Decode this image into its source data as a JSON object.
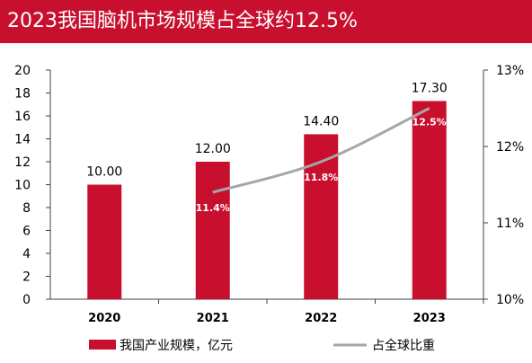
{
  "header": {
    "title": "2023我国脑机市场规模占全球约12.5%"
  },
  "colors": {
    "bar": "#c8102e",
    "line": "#a6a6a6",
    "title_bg": "#c8102e",
    "axis": "#404040"
  },
  "chart_data": {
    "type": "bar",
    "categories": [
      "2020",
      "2021",
      "2022",
      "2023"
    ],
    "series": [
      {
        "name": "我国产业规模，亿元",
        "type": "bar",
        "axis": "left",
        "values": [
          10.0,
          12.0,
          14.4,
          17.3
        ],
        "labels": [
          "10.00",
          "12.00",
          "14.40",
          "17.30"
        ]
      },
      {
        "name": "占全球比重",
        "type": "line",
        "axis": "right",
        "values": [
          null,
          11.4,
          11.8,
          12.5
        ],
        "labels": [
          "",
          "11.4%",
          "11.8%",
          "12.5%"
        ]
      }
    ],
    "ylim": [
      0,
      20
    ],
    "yticks": [
      "0",
      "2",
      "4",
      "6",
      "8",
      "10",
      "12",
      "14",
      "16",
      "18",
      "20"
    ],
    "y2lim": [
      10,
      13
    ],
    "y2ticks": [
      "10%",
      "11%",
      "12%",
      "13%"
    ],
    "legend_position": "bottom",
    "grid": false
  }
}
